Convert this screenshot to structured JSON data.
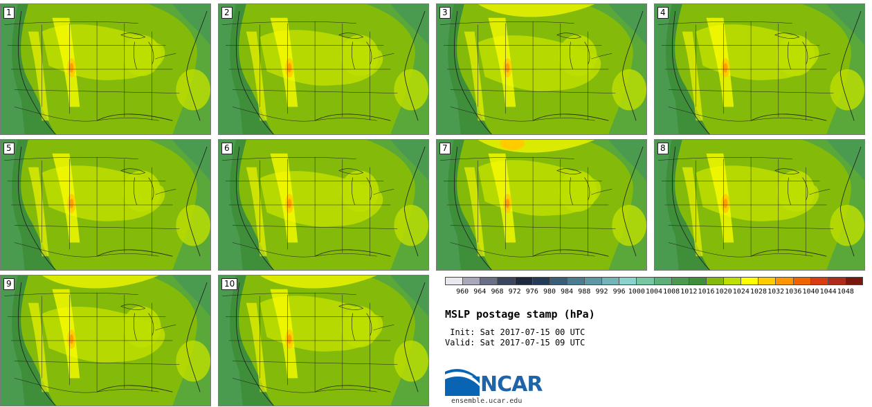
{
  "panels": [
    {
      "label": "1"
    },
    {
      "label": "2"
    },
    {
      "label": "3"
    },
    {
      "label": "4"
    },
    {
      "label": "5"
    },
    {
      "label": "6"
    },
    {
      "label": "7"
    },
    {
      "label": "8"
    },
    {
      "label": "9"
    },
    {
      "label": "10"
    }
  ],
  "colorbar": {
    "colors": [
      "#e8e8ee",
      "#a8a8ba",
      "#6a6f88",
      "#3a4660",
      "#1d2a40",
      "#243c5a",
      "#3b5e78",
      "#4c7c90",
      "#5e98a6",
      "#72b4b8",
      "#8ad3cc",
      "#76c7a2",
      "#5cb078",
      "#4a9a50",
      "#3f8e3a",
      "#84ba0a",
      "#bedf00",
      "#ffff00",
      "#ffcc00",
      "#ff9600",
      "#f06400",
      "#d83c10",
      "#b02c1a",
      "#7a180e"
    ],
    "ticks": [
      "960",
      "964",
      "968",
      "972",
      "976",
      "980",
      "984",
      "988",
      "992",
      "996",
      "1000",
      "1004",
      "1008",
      "1012",
      "1016",
      "1020",
      "1024",
      "1028",
      "1032",
      "1036",
      "1040",
      "1044",
      "1048"
    ]
  },
  "title": "MSLP postage stamp (hPa)",
  "init_line": " Init: Sat 2017-07-15 00 UTC",
  "valid_line": "Valid: Sat 2017-07-15 09 UTC",
  "logo": {
    "name": "NCAR",
    "url": "ensemble.ucar.edu"
  }
}
